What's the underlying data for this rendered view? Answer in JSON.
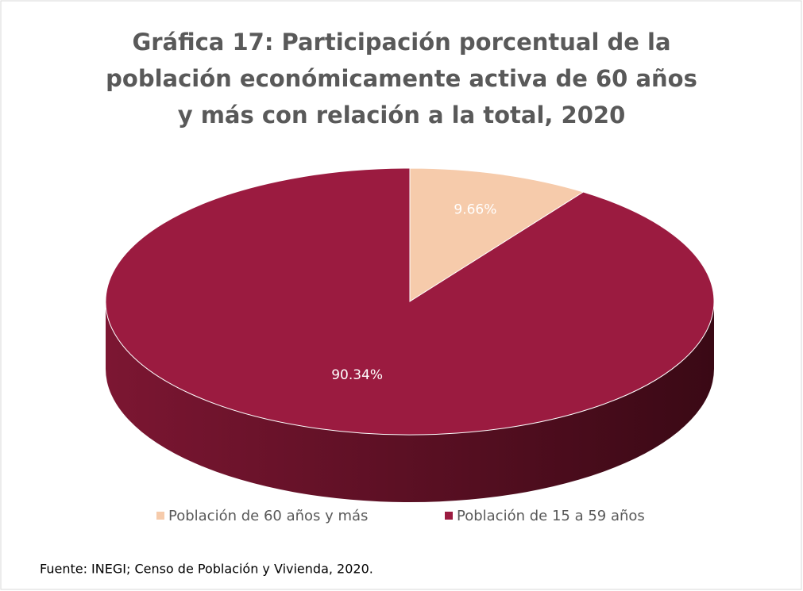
{
  "chart_data": {
    "type": "pie3d",
    "title": "Gráfica 17: Participación porcentual de la población económicamente activa de 60 años y más con relación a la total, 2020",
    "categories": [
      "Población de 60 años y más",
      "Población de 15 a 59 años"
    ],
    "values": [
      9.66,
      90.34
    ],
    "value_labels": [
      "9.66%",
      "90.34%"
    ],
    "colors": [
      "#f6cbab",
      "#9b1b40"
    ],
    "legend": "bottom",
    "source": "Fuente: INEGI; Censo de Población y Vivienda, 2020."
  }
}
